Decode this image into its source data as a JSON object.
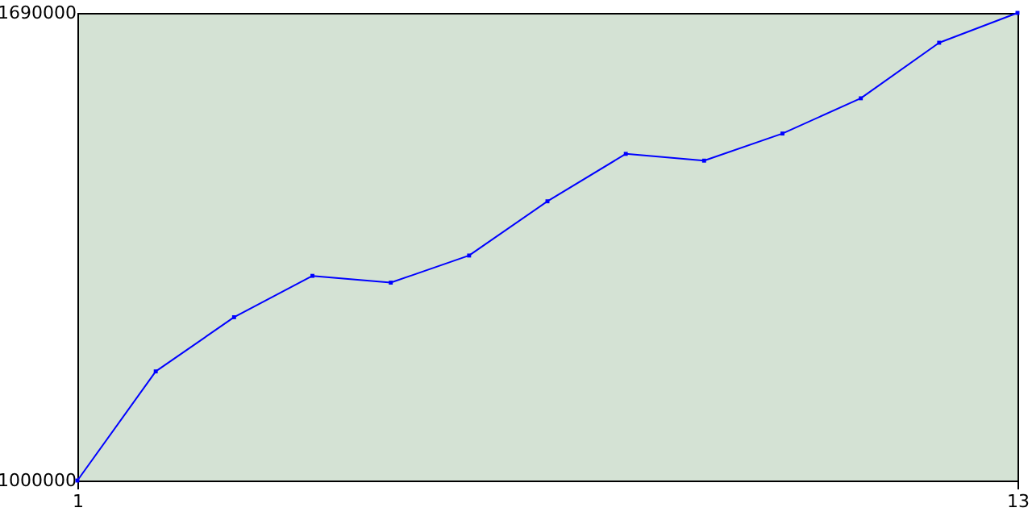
{
  "chart_data": {
    "type": "line",
    "x": [
      1,
      2,
      3,
      4,
      5,
      6,
      7,
      8,
      9,
      10,
      11,
      12,
      13
    ],
    "series": [
      {
        "color": "#0000ff",
        "values": [
          1000000,
          1161000,
          1241000,
          1302000,
          1292000,
          1332000,
          1412000,
          1482000,
          1472000,
          1512000,
          1564000,
          1646000,
          1690000
        ]
      }
    ],
    "xlim": [
      1,
      13
    ],
    "xticks": [
      1,
      13
    ],
    "ylim": [
      1000000,
      1690000
    ],
    "yticks": [
      1000000,
      1690000
    ],
    "grid": false,
    "marker": "square",
    "line_style": "solid"
  }
}
